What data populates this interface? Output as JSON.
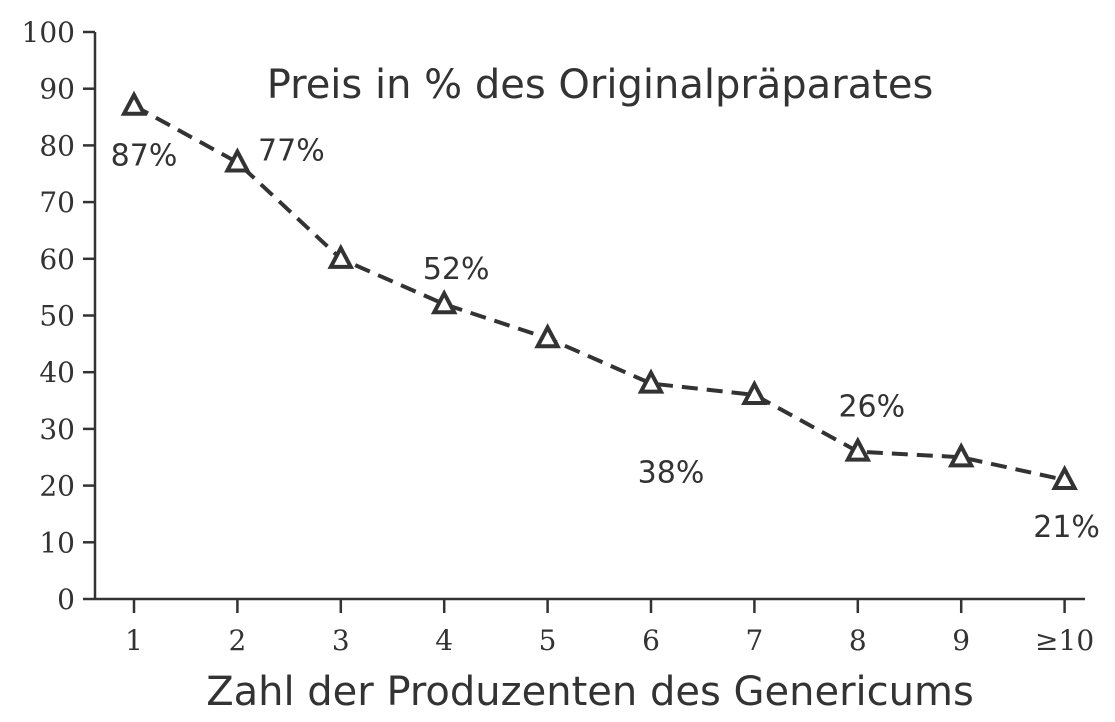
{
  "chart_data": {
    "type": "line",
    "title": "Preis in % des Originalpräparates",
    "xlabel": "Zahl der Produzenten des Genericums",
    "ylabel": "",
    "categories": [
      "1",
      "2",
      "3",
      "4",
      "5",
      "6",
      "7",
      "8",
      "9",
      "≥10"
    ],
    "series": [
      {
        "values": [
          87,
          77,
          60,
          52,
          46,
          38,
          36,
          26,
          25,
          21
        ]
      }
    ],
    "data_labels": [
      {
        "index": 0,
        "text": "87%"
      },
      {
        "index": 1,
        "text": "77%"
      },
      {
        "index": 3,
        "text": "52%"
      },
      {
        "index": 5,
        "text": "38%"
      },
      {
        "index": 7,
        "text": "26%"
      },
      {
        "index": 9,
        "text": "21%"
      }
    ],
    "ylim": [
      0,
      100
    ],
    "yticks": [
      "0",
      "10",
      "20",
      "30",
      "40",
      "50",
      "60",
      "70",
      "80",
      "90",
      "100"
    ],
    "grid": false,
    "line_style": "dashed",
    "marker": "triangle-open",
    "color": "#333333"
  }
}
